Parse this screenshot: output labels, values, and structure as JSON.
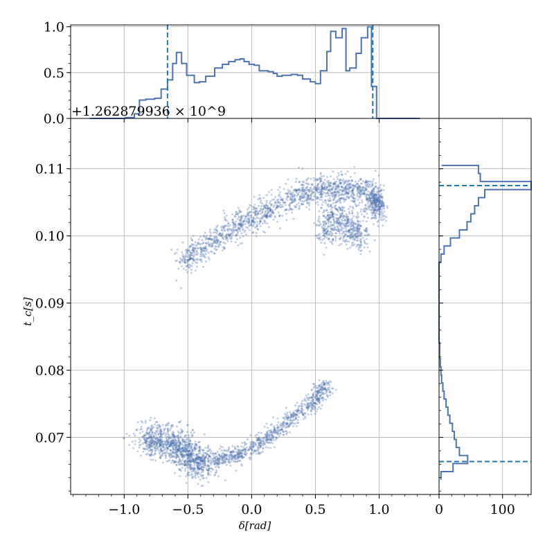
{
  "chart_data": {
    "type": "scatter",
    "layout": "corner-plot: scatter with marginal histograms (top: delta, right: t_c)",
    "xlabel": "δ[rad]",
    "ylabel": "t_c[s]",
    "y_offset_text": "+1.262879936 × 10^9",
    "xlim": [
      -1.42,
      1.47
    ],
    "ylim": [
      0.0615,
      0.1175
    ],
    "x_ticks": [
      -1.0,
      -0.5,
      0.0,
      0.5,
      1.0
    ],
    "x_tick_labels": [
      "−1.0",
      "−0.5",
      "0.0",
      "0.5",
      "1.0"
    ],
    "y_ticks": [
      0.07,
      0.08,
      0.09,
      0.1,
      0.11
    ],
    "y_tick_labels": [
      "0.07",
      "0.08",
      "0.09",
      "0.10",
      "0.11"
    ],
    "grid": true,
    "color": "#4c72b0",
    "line_color": "#1f77b4",
    "scatter_clusters": [
      {
        "name": "upper-arc",
        "x": [
          -0.55,
          -0.3,
          0.0,
          0.3,
          0.55,
          0.75,
          0.95,
          1.0
        ],
        "y": [
          0.096,
          0.0995,
          0.1025,
          0.1055,
          0.107,
          0.107,
          0.106,
          0.104
        ]
      },
      {
        "name": "upper-fork",
        "x": [
          0.55,
          0.65,
          0.78,
          0.88
        ],
        "y": [
          0.1,
          0.103,
          0.101,
          0.1
        ]
      },
      {
        "name": "lower-blob",
        "x": [
          -0.85,
          -0.7,
          -0.55,
          -0.45,
          -0.35
        ],
        "y": [
          0.0695,
          0.0695,
          0.0685,
          0.0665,
          0.066
        ]
      },
      {
        "name": "lower-arc",
        "x": [
          -0.3,
          -0.1,
          0.1,
          0.3,
          0.5,
          0.6
        ],
        "y": [
          0.0665,
          0.0675,
          0.0695,
          0.0725,
          0.0755,
          0.078
        ]
      }
    ],
    "top_histogram": {
      "ylim": [
        0,
        1.02
      ],
      "y_ticks": [
        0.0,
        0.5,
        1.0
      ],
      "y_tick_labels": [
        "0.0",
        "0.5",
        "1.0"
      ],
      "bin_edges": [
        -1.27,
        -0.99,
        -0.92,
        -0.88,
        -0.83,
        -0.76,
        -0.71,
        -0.66,
        -0.62,
        -0.59,
        -0.55,
        -0.51,
        -0.45,
        -0.41,
        -0.36,
        -0.29,
        -0.23,
        -0.18,
        -0.13,
        -0.09,
        -0.06,
        -0.02,
        0.02,
        0.06,
        0.1,
        0.13,
        0.17,
        0.2,
        0.24,
        0.28,
        0.31,
        0.36,
        0.4,
        0.46,
        0.5,
        0.54,
        0.59,
        0.62,
        0.66,
        0.71,
        0.74,
        0.77,
        0.82,
        0.86,
        0.91,
        0.94,
        0.98,
        1.02,
        1.07,
        1.32
      ],
      "values": [
        0.0,
        0.01,
        0.05,
        0.2,
        0.21,
        0.22,
        0.32,
        0.42,
        0.6,
        0.72,
        0.6,
        0.47,
        0.39,
        0.4,
        0.46,
        0.55,
        0.59,
        0.62,
        0.64,
        0.65,
        0.62,
        0.59,
        0.58,
        0.52,
        0.52,
        0.51,
        0.49,
        0.46,
        0.47,
        0.47,
        0.48,
        0.47,
        0.43,
        0.4,
        0.38,
        0.52,
        0.73,
        0.95,
        0.88,
        0.98,
        0.52,
        0.55,
        0.71,
        0.88,
        1.0,
        0.35,
        0.0,
        0.0,
        0.0
      ],
      "vlines": [
        -0.66,
        0.95
      ]
    },
    "right_histogram": {
      "xlim": [
        0,
        145
      ],
      "x_ticks": [
        0,
        100
      ],
      "x_tick_labels": [
        "0",
        "100"
      ],
      "bin_edges": [
        0.0637,
        0.0649,
        0.0661,
        0.0673,
        0.0685,
        0.0697,
        0.0709,
        0.0721,
        0.0733,
        0.0745,
        0.0757,
        0.0769,
        0.0781,
        0.0793,
        0.0805,
        0.0817,
        0.0829,
        0.0841,
        0.0853,
        0.0865,
        0.0877,
        0.0889,
        0.0901,
        0.0913,
        0.0925,
        0.0937,
        0.0949,
        0.0961,
        0.0973,
        0.0985,
        0.0997,
        0.1009,
        0.1021,
        0.1033,
        0.1045,
        0.1057,
        0.1069,
        0.1081,
        0.1093,
        0.1105
      ],
      "values": [
        3,
        22,
        45,
        32,
        27,
        24,
        21,
        17,
        14,
        11,
        8,
        6,
        4,
        3,
        2,
        1,
        1,
        0,
        0,
        0,
        0,
        0,
        0,
        0,
        0,
        0,
        0,
        3,
        8,
        18,
        32,
        44,
        50,
        56,
        62,
        72,
        145,
        65,
        62,
        4
      ],
      "hlines": [
        0.0664,
        0.1075
      ]
    }
  }
}
